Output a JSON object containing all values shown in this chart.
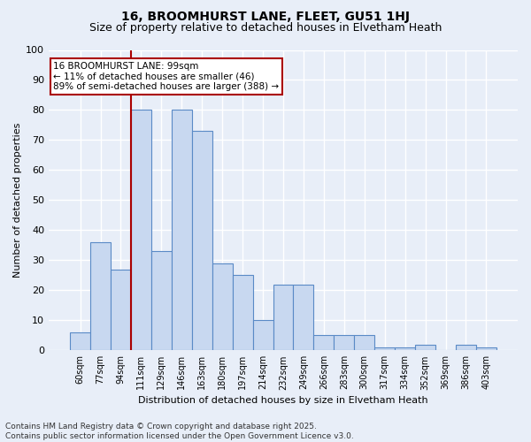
{
  "title1": "16, BROOMHURST LANE, FLEET, GU51 1HJ",
  "title2": "Size of property relative to detached houses in Elvetham Heath",
  "xlabel": "Distribution of detached houses by size in Elvetham Heath",
  "ylabel": "Number of detached properties",
  "categories": [
    "60sqm",
    "77sqm",
    "94sqm",
    "111sqm",
    "129sqm",
    "146sqm",
    "163sqm",
    "180sqm",
    "197sqm",
    "214sqm",
    "232sqm",
    "249sqm",
    "266sqm",
    "283sqm",
    "300sqm",
    "317sqm",
    "334sqm",
    "352sqm",
    "369sqm",
    "386sqm",
    "403sqm"
  ],
  "values": [
    6,
    36,
    27,
    80,
    33,
    80,
    73,
    29,
    25,
    10,
    22,
    22,
    5,
    5,
    5,
    1,
    1,
    2,
    0,
    2,
    1
  ],
  "bar_color": "#c8d8f0",
  "bar_edge_color": "#5a8ac6",
  "vline_x": 2.5,
  "vline_color": "#aa0000",
  "annotation_line1": "16 BROOMHURST LANE: 99sqm",
  "annotation_line2": "← 11% of detached houses are smaller (46)",
  "annotation_line3": "89% of semi-detached houses are larger (388) →",
  "annotation_box_color": "#ffffff",
  "annotation_edge_color": "#aa0000",
  "ylim": [
    0,
    100
  ],
  "yticks": [
    0,
    10,
    20,
    30,
    40,
    50,
    60,
    70,
    80,
    90,
    100
  ],
  "footer": "Contains HM Land Registry data © Crown copyright and database right 2025.\nContains public sector information licensed under the Open Government Licence v3.0.",
  "background_color": "#e8eef8",
  "plot_background_color": "#e8eef8",
  "grid_color": "#ffffff",
  "title1_fontsize": 10,
  "title2_fontsize": 9,
  "axis_label_fontsize": 8,
  "tick_fontsize": 7,
  "footer_fontsize": 6.5
}
